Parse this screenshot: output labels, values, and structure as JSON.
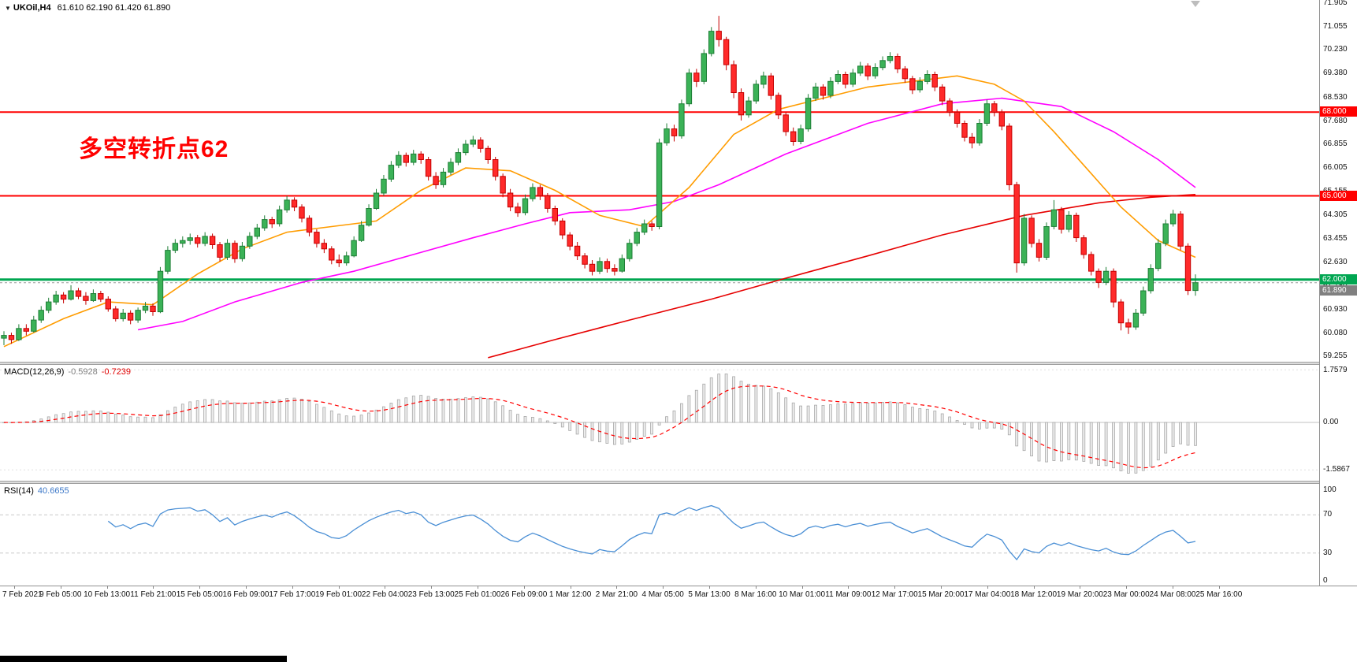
{
  "header": {
    "symbol_timeframe": "UKOil,H4",
    "ohlc": "61.610 62.190 61.420 61.890"
  },
  "annotation": {
    "text": "多空转折点62",
    "color": "#ff0000"
  },
  "indicators": {
    "macd": {
      "label": "MACD(12,26,9)",
      "value_main": "-0.5928",
      "value_signal": "-0.7239"
    },
    "rsi": {
      "label": "RSI(14)",
      "value": "40.6655"
    }
  },
  "current_price": {
    "value": 61.89,
    "label": "61.890"
  },
  "time_axis": [
    "7 Feb 2021",
    "9 Feb 05:00",
    "10 Feb 13:00",
    "11 Feb 21:00",
    "15 Feb 05:00",
    "16 Feb 09:00",
    "17 Feb 17:00",
    "19 Feb 01:00",
    "22 Feb 04:00",
    "23 Feb 13:00",
    "25 Feb 01:00",
    "26 Feb 09:00",
    "1 Mar 12:00",
    "2 Mar 21:00",
    "4 Mar 05:00",
    "5 Mar 13:00",
    "8 Mar 16:00",
    "10 Mar 01:00",
    "11 Mar 09:00",
    "12 Mar 17:00",
    "15 Mar 20:00",
    "17 Mar 04:00",
    "18 Mar 12:00",
    "19 Mar 20:00",
    "23 Mar 00:00",
    "24 Mar 08:00",
    "25 Mar 16:00"
  ],
  "colors": {
    "up": "#3bb257",
    "up_border": "#1e7e36",
    "down": "#ff2a2a",
    "down_border": "#c40000",
    "ma_orange": "#ff9c00",
    "ma_magenta": "#ff00ff",
    "ma_red": "#e60000",
    "rsi": "#4a8fd5",
    "macd_signal": "#ff0000",
    "hist_fill": "#ededed",
    "hist_border": "#a8a8a8",
    "hline_red": "#ff0000",
    "hline_green": "#00a651",
    "bid_tag": "#808080"
  },
  "chart_data": {
    "type": "candlestick",
    "symbol": "UKOil",
    "timeframe": "H4",
    "bid": 61.89,
    "last_candle_ohlc": [
      61.61,
      62.19,
      61.42,
      61.89
    ],
    "price_axis_ticks": [
      71.905,
      71.055,
      70.23,
      69.38,
      68.53,
      67.68,
      66.855,
      66.005,
      65.155,
      64.305,
      63.455,
      62.63,
      61.78,
      60.93,
      60.08,
      59.255
    ],
    "candles": [
      [
        59.9,
        60.15,
        59.65,
        60.0
      ],
      [
        60.0,
        60.1,
        59.7,
        59.85
      ],
      [
        59.85,
        60.4,
        59.8,
        60.25
      ],
      [
        60.25,
        60.4,
        60.0,
        60.15
      ],
      [
        60.15,
        60.7,
        60.1,
        60.55
      ],
      [
        60.55,
        61.05,
        60.45,
        60.9
      ],
      [
        60.9,
        61.35,
        60.8,
        61.2
      ],
      [
        61.2,
        61.6,
        61.1,
        61.45
      ],
      [
        61.45,
        61.55,
        61.15,
        61.3
      ],
      [
        61.3,
        61.8,
        61.25,
        61.6
      ],
      [
        61.6,
        61.7,
        61.3,
        61.4
      ],
      [
        61.4,
        61.55,
        61.1,
        61.25
      ],
      [
        61.25,
        61.65,
        61.2,
        61.5
      ],
      [
        61.5,
        61.6,
        61.2,
        61.3
      ],
      [
        61.3,
        61.4,
        60.85,
        60.95
      ],
      [
        60.95,
        61.05,
        60.5,
        60.6
      ],
      [
        60.6,
        60.95,
        60.5,
        60.8
      ],
      [
        60.8,
        60.9,
        60.4,
        60.55
      ],
      [
        60.55,
        61.0,
        60.45,
        60.9
      ],
      [
        60.9,
        61.2,
        60.8,
        61.05
      ],
      [
        61.05,
        61.15,
        60.7,
        60.85
      ],
      [
        60.85,
        62.45,
        60.8,
        62.3
      ],
      [
        62.3,
        63.2,
        62.2,
        63.05
      ],
      [
        63.05,
        63.45,
        62.95,
        63.3
      ],
      [
        63.3,
        63.55,
        63.15,
        63.4
      ],
      [
        63.4,
        63.65,
        63.25,
        63.5
      ],
      [
        63.5,
        63.6,
        63.15,
        63.3
      ],
      [
        63.3,
        63.7,
        63.2,
        63.55
      ],
      [
        63.55,
        63.65,
        63.1,
        63.25
      ],
      [
        63.25,
        63.35,
        62.65,
        62.8
      ],
      [
        62.8,
        63.45,
        62.7,
        63.3
      ],
      [
        63.3,
        63.4,
        62.6,
        62.75
      ],
      [
        62.75,
        63.35,
        62.65,
        63.2
      ],
      [
        63.2,
        63.7,
        63.1,
        63.55
      ],
      [
        63.55,
        64.0,
        63.45,
        63.85
      ],
      [
        63.85,
        64.3,
        63.75,
        64.15
      ],
      [
        64.15,
        64.25,
        63.85,
        64.0
      ],
      [
        64.0,
        64.65,
        63.9,
        64.5
      ],
      [
        64.5,
        65.0,
        64.4,
        64.85
      ],
      [
        64.85,
        64.95,
        64.45,
        64.6
      ],
      [
        64.6,
        64.7,
        64.05,
        64.2
      ],
      [
        64.2,
        64.3,
        63.55,
        63.7
      ],
      [
        63.7,
        63.8,
        63.15,
        63.3
      ],
      [
        63.3,
        63.45,
        62.95,
        63.1
      ],
      [
        63.1,
        63.2,
        62.55,
        62.7
      ],
      [
        62.7,
        62.9,
        62.45,
        62.6
      ],
      [
        62.6,
        63.0,
        62.5,
        62.85
      ],
      [
        62.85,
        63.55,
        62.8,
        63.4
      ],
      [
        63.4,
        64.1,
        63.35,
        63.95
      ],
      [
        63.95,
        64.7,
        63.9,
        64.55
      ],
      [
        64.55,
        65.25,
        64.5,
        65.1
      ],
      [
        65.1,
        65.75,
        65.0,
        65.6
      ],
      [
        65.6,
        66.25,
        65.5,
        66.1
      ],
      [
        66.1,
        66.6,
        66.0,
        66.45
      ],
      [
        66.45,
        66.55,
        66.05,
        66.2
      ],
      [
        66.2,
        66.65,
        66.1,
        66.5
      ],
      [
        66.5,
        66.6,
        66.15,
        66.3
      ],
      [
        66.3,
        66.4,
        65.55,
        65.7
      ],
      [
        65.7,
        65.85,
        65.25,
        65.4
      ],
      [
        65.4,
        66.0,
        65.3,
        65.85
      ],
      [
        65.85,
        66.35,
        65.75,
        66.2
      ],
      [
        66.2,
        66.7,
        66.1,
        66.55
      ],
      [
        66.55,
        67.0,
        66.45,
        66.85
      ],
      [
        66.85,
        67.15,
        66.75,
        67.0
      ],
      [
        67.0,
        67.1,
        66.55,
        66.7
      ],
      [
        66.7,
        66.8,
        66.15,
        66.3
      ],
      [
        66.3,
        66.4,
        65.55,
        65.7
      ],
      [
        65.7,
        65.8,
        64.95,
        65.1
      ],
      [
        65.1,
        65.25,
        64.45,
        64.6
      ],
      [
        64.6,
        64.75,
        64.25,
        64.4
      ],
      [
        64.4,
        65.05,
        64.3,
        64.9
      ],
      [
        64.9,
        65.45,
        64.8,
        65.3
      ],
      [
        65.3,
        65.4,
        64.85,
        65.0
      ],
      [
        65.0,
        65.1,
        64.4,
        64.55
      ],
      [
        64.55,
        64.65,
        63.95,
        64.1
      ],
      [
        64.1,
        64.2,
        63.45,
        63.6
      ],
      [
        63.6,
        63.7,
        63.05,
        63.2
      ],
      [
        63.2,
        63.35,
        62.7,
        62.85
      ],
      [
        62.85,
        62.95,
        62.4,
        62.55
      ],
      [
        62.55,
        62.7,
        62.15,
        62.3
      ],
      [
        62.3,
        62.8,
        62.2,
        62.65
      ],
      [
        62.65,
        62.75,
        62.25,
        62.4
      ],
      [
        62.4,
        62.55,
        62.15,
        62.3
      ],
      [
        62.3,
        62.9,
        62.25,
        62.75
      ],
      [
        62.75,
        63.45,
        62.65,
        63.3
      ],
      [
        63.3,
        63.85,
        63.2,
        63.7
      ],
      [
        63.7,
        64.15,
        63.6,
        64.0
      ],
      [
        64.0,
        64.1,
        63.75,
        63.9
      ],
      [
        63.9,
        67.05,
        63.8,
        66.9
      ],
      [
        66.9,
        67.6,
        66.8,
        67.4
      ],
      [
        67.4,
        67.55,
        66.95,
        67.15
      ],
      [
        67.15,
        68.45,
        67.05,
        68.3
      ],
      [
        68.3,
        69.55,
        68.2,
        69.4
      ],
      [
        69.4,
        69.55,
        68.9,
        69.1
      ],
      [
        69.1,
        70.25,
        69.0,
        70.1
      ],
      [
        70.1,
        71.05,
        70.0,
        70.9
      ],
      [
        70.9,
        71.45,
        70.35,
        70.6
      ],
      [
        70.6,
        70.7,
        69.5,
        69.7
      ],
      [
        69.7,
        69.85,
        68.5,
        68.7
      ],
      [
        68.7,
        68.85,
        67.7,
        67.9
      ],
      [
        67.9,
        68.55,
        67.8,
        68.4
      ],
      [
        68.4,
        69.15,
        68.3,
        69.0
      ],
      [
        69.0,
        69.45,
        68.85,
        69.3
      ],
      [
        69.3,
        69.4,
        68.45,
        68.6
      ],
      [
        68.6,
        68.7,
        67.75,
        67.9
      ],
      [
        67.9,
        68.0,
        67.15,
        67.3
      ],
      [
        67.3,
        67.45,
        66.8,
        66.95
      ],
      [
        66.95,
        67.55,
        66.85,
        67.4
      ],
      [
        67.4,
        68.65,
        67.3,
        68.5
      ],
      [
        68.5,
        69.05,
        68.4,
        68.9
      ],
      [
        68.9,
        69.0,
        68.45,
        68.6
      ],
      [
        68.6,
        69.25,
        68.5,
        69.1
      ],
      [
        69.1,
        69.5,
        69.0,
        69.35
      ],
      [
        69.35,
        69.45,
        68.85,
        69.0
      ],
      [
        69.0,
        69.55,
        68.9,
        69.4
      ],
      [
        69.4,
        69.8,
        69.3,
        69.65
      ],
      [
        69.65,
        69.75,
        69.15,
        69.3
      ],
      [
        69.3,
        69.75,
        69.2,
        69.6
      ],
      [
        69.6,
        70.0,
        69.5,
        69.85
      ],
      [
        69.85,
        70.15,
        69.75,
        70.0
      ],
      [
        70.0,
        70.1,
        69.4,
        69.55
      ],
      [
        69.55,
        69.65,
        69.05,
        69.2
      ],
      [
        69.2,
        69.3,
        68.65,
        68.8
      ],
      [
        68.8,
        69.25,
        68.7,
        69.1
      ],
      [
        69.1,
        69.5,
        69.0,
        69.35
      ],
      [
        69.35,
        69.45,
        68.75,
        68.9
      ],
      [
        68.9,
        69.0,
        68.25,
        68.4
      ],
      [
        68.4,
        68.5,
        67.85,
        68.0
      ],
      [
        68.0,
        68.1,
        67.45,
        67.6
      ],
      [
        67.6,
        67.7,
        66.95,
        67.1
      ],
      [
        67.1,
        67.25,
        66.7,
        66.9
      ],
      [
        66.9,
        67.75,
        66.8,
        67.6
      ],
      [
        67.6,
        68.45,
        67.5,
        68.3
      ],
      [
        68.3,
        68.4,
        67.85,
        68.0
      ],
      [
        68.0,
        68.1,
        67.35,
        67.5
      ],
      [
        67.5,
        67.6,
        65.2,
        65.4
      ],
      [
        65.4,
        65.5,
        62.25,
        62.6
      ],
      [
        62.6,
        64.35,
        62.5,
        64.2
      ],
      [
        64.2,
        64.3,
        63.15,
        63.3
      ],
      [
        63.3,
        63.45,
        62.65,
        62.8
      ],
      [
        62.8,
        64.05,
        62.7,
        63.9
      ],
      [
        63.9,
        64.85,
        63.8,
        64.5
      ],
      [
        64.5,
        64.6,
        63.65,
        63.8
      ],
      [
        63.8,
        64.45,
        63.7,
        64.3
      ],
      [
        64.3,
        64.4,
        63.35,
        63.5
      ],
      [
        63.5,
        63.6,
        62.75,
        62.9
      ],
      [
        62.9,
        63.0,
        62.15,
        62.3
      ],
      [
        62.3,
        62.4,
        61.7,
        61.9
      ],
      [
        61.9,
        62.45,
        61.8,
        62.3
      ],
      [
        62.3,
        62.4,
        61.0,
        61.2
      ],
      [
        61.2,
        61.3,
        60.18,
        60.45
      ],
      [
        60.45,
        60.6,
        60.05,
        60.3
      ],
      [
        60.3,
        60.95,
        60.2,
        60.8
      ],
      [
        60.8,
        61.75,
        60.7,
        61.6
      ],
      [
        61.6,
        62.55,
        61.5,
        62.4
      ],
      [
        62.4,
        63.45,
        62.3,
        63.3
      ],
      [
        63.3,
        64.15,
        63.2,
        64.0
      ],
      [
        64.0,
        64.5,
        63.9,
        64.35
      ],
      [
        64.35,
        64.45,
        63.05,
        63.2
      ],
      [
        63.2,
        63.3,
        61.45,
        61.61
      ],
      [
        61.61,
        62.19,
        61.42,
        61.89
      ]
    ],
    "overlays": {
      "horizontal_lines": [
        {
          "price": 68.0,
          "label": "68.000",
          "color": "#ff0000",
          "width": 2
        },
        {
          "price": 65.0,
          "label": "65.000",
          "color": "#ff0000",
          "width": 2
        },
        {
          "price": 62.0,
          "label": "62.000",
          "color": "#00a651",
          "width": 3
        }
      ],
      "ma_orange": [
        [
          0,
          59.6
        ],
        [
          8,
          60.6
        ],
        [
          14,
          61.2
        ],
        [
          20,
          61.1
        ],
        [
          26,
          62.2
        ],
        [
          32,
          63.1
        ],
        [
          38,
          63.7
        ],
        [
          44,
          63.9
        ],
        [
          50,
          64.1
        ],
        [
          56,
          65.2
        ],
        [
          62,
          66.0
        ],
        [
          68,
          65.9
        ],
        [
          74,
          65.2
        ],
        [
          80,
          64.3
        ],
        [
          86,
          63.9
        ],
        [
          92,
          65.3
        ],
        [
          98,
          67.2
        ],
        [
          104,
          68.1
        ],
        [
          110,
          68.5
        ],
        [
          116,
          68.9
        ],
        [
          122,
          69.1
        ],
        [
          128,
          69.3
        ],
        [
          133,
          69.0
        ],
        [
          137,
          68.4
        ],
        [
          141,
          67.3
        ],
        [
          146,
          65.8
        ],
        [
          150,
          64.6
        ],
        [
          155,
          63.4
        ],
        [
          160,
          62.8
        ]
      ],
      "ma_magenta": [
        [
          18,
          60.2
        ],
        [
          24,
          60.5
        ],
        [
          31,
          61.2
        ],
        [
          40,
          61.9
        ],
        [
          47,
          62.3
        ],
        [
          55,
          62.9
        ],
        [
          63,
          63.5
        ],
        [
          70,
          64.0
        ],
        [
          76,
          64.4
        ],
        [
          84,
          64.5
        ],
        [
          90,
          64.8
        ],
        [
          96,
          65.4
        ],
        [
          105,
          66.5
        ],
        [
          116,
          67.6
        ],
        [
          126,
          68.3
        ],
        [
          134,
          68.5
        ],
        [
          142,
          68.2
        ],
        [
          149,
          67.3
        ],
        [
          155,
          66.3
        ],
        [
          160,
          65.3
        ]
      ],
      "ma_red": [
        [
          65,
          59.2
        ],
        [
          74,
          59.85
        ],
        [
          84,
          60.55
        ],
        [
          95,
          61.3
        ],
        [
          105,
          62.05
        ],
        [
          116,
          62.85
        ],
        [
          126,
          63.6
        ],
        [
          137,
          64.3
        ],
        [
          147,
          64.75
        ],
        [
          154,
          64.95
        ],
        [
          160,
          65.05
        ]
      ]
    },
    "indicator_panels": [
      {
        "type": "macd",
        "params": [
          12,
          26,
          9
        ],
        "derived_from": "candles",
        "current": [
          -0.5928,
          -0.7239
        ],
        "axis_ticks": [
          {
            "v": 1.7579,
            "label": "1.7579"
          },
          {
            "v": 0,
            "label": "0.00"
          },
          {
            "v": -1.5867,
            "label": "-1.5867"
          }
        ]
      },
      {
        "type": "rsi",
        "params": [
          14
        ],
        "derived_from": "candles",
        "current": 40.6655,
        "levels": [
          70,
          30
        ],
        "axis_ticks": [
          {
            "v": 100,
            "label": "100"
          },
          {
            "v": 70,
            "label": "70"
          },
          {
            "v": 30,
            "label": "30"
          },
          {
            "v": 0,
            "label": "0"
          }
        ]
      }
    ]
  }
}
